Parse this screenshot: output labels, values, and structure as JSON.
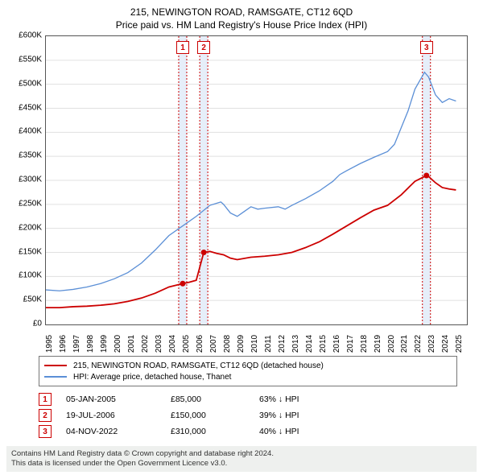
{
  "title": "215, NEWINGTON ROAD, RAMSGATE, CT12 6QD",
  "subtitle": "Price paid vs. HM Land Registry's House Price Index (HPI)",
  "chart": {
    "type": "line",
    "background_color": "#ffffff",
    "grid_color": "#e0e0e0",
    "border_color": "#555555",
    "xlim": [
      1995,
      2025.8
    ],
    "ylim": [
      0,
      600000
    ],
    "ytick_step": 50000,
    "yticks": [
      "£0",
      "£50K",
      "£100K",
      "£150K",
      "£200K",
      "£250K",
      "£300K",
      "£350K",
      "£400K",
      "£450K",
      "£500K",
      "£550K",
      "£600K"
    ],
    "xticks": [
      1995,
      1996,
      1997,
      1998,
      1999,
      2000,
      2001,
      2002,
      2003,
      2004,
      2005,
      2006,
      2007,
      2008,
      2009,
      2010,
      2011,
      2012,
      2013,
      2014,
      2015,
      2016,
      2017,
      2018,
      2019,
      2020,
      2021,
      2022,
      2023,
      2024,
      2025
    ],
    "label_fontsize": 10,
    "series": [
      {
        "name": "property",
        "label": "215, NEWINGTON ROAD, RAMSGATE, CT12 6QD (detached house)",
        "color": "#cc0000",
        "line_width": 1.8,
        "points": [
          [
            1995,
            35000
          ],
          [
            1996,
            35000
          ],
          [
            1997,
            37000
          ],
          [
            1998,
            38000
          ],
          [
            1999,
            40000
          ],
          [
            2000,
            43000
          ],
          [
            2001,
            48000
          ],
          [
            2002,
            55000
          ],
          [
            2003,
            65000
          ],
          [
            2004,
            78000
          ],
          [
            2005.01,
            85000
          ],
          [
            2005.5,
            88000
          ],
          [
            2006,
            92000
          ],
          [
            2006.55,
            150000
          ],
          [
            2007,
            152000
          ],
          [
            2007.5,
            148000
          ],
          [
            2008,
            145000
          ],
          [
            2008.5,
            138000
          ],
          [
            2009,
            135000
          ],
          [
            2010,
            140000
          ],
          [
            2011,
            142000
          ],
          [
            2012,
            145000
          ],
          [
            2013,
            150000
          ],
          [
            2014,
            160000
          ],
          [
            2015,
            172000
          ],
          [
            2016,
            188000
          ],
          [
            2017,
            205000
          ],
          [
            2018,
            222000
          ],
          [
            2019,
            238000
          ],
          [
            2020,
            248000
          ],
          [
            2021,
            270000
          ],
          [
            2022,
            298000
          ],
          [
            2022.84,
            310000
          ],
          [
            2023,
            308000
          ],
          [
            2023.5,
            295000
          ],
          [
            2024,
            285000
          ],
          [
            2024.5,
            282000
          ],
          [
            2025,
            280000
          ]
        ],
        "markers": [
          {
            "x": 2005.01,
            "y": 85000
          },
          {
            "x": 2006.55,
            "y": 150000
          },
          {
            "x": 2022.84,
            "y": 310000
          }
        ]
      },
      {
        "name": "hpi",
        "label": "HPI: Average price, detached house, Thanet",
        "color": "#5b8fd6",
        "line_width": 1.3,
        "points": [
          [
            1995,
            72000
          ],
          [
            1996,
            70000
          ],
          [
            1997,
            73000
          ],
          [
            1998,
            78000
          ],
          [
            1999,
            85000
          ],
          [
            2000,
            95000
          ],
          [
            2001,
            108000
          ],
          [
            2002,
            128000
          ],
          [
            2003,
            155000
          ],
          [
            2004,
            185000
          ],
          [
            2005,
            205000
          ],
          [
            2006,
            225000
          ],
          [
            2007,
            248000
          ],
          [
            2007.8,
            255000
          ],
          [
            2008,
            250000
          ],
          [
            2008.5,
            232000
          ],
          [
            2009,
            225000
          ],
          [
            2009.5,
            235000
          ],
          [
            2010,
            245000
          ],
          [
            2010.5,
            240000
          ],
          [
            2011,
            242000
          ],
          [
            2012,
            245000
          ],
          [
            2012.5,
            240000
          ],
          [
            2013,
            248000
          ],
          [
            2014,
            262000
          ],
          [
            2015,
            278000
          ],
          [
            2016,
            298000
          ],
          [
            2016.5,
            312000
          ],
          [
            2017,
            320000
          ],
          [
            2018,
            335000
          ],
          [
            2019,
            348000
          ],
          [
            2020,
            360000
          ],
          [
            2020.5,
            375000
          ],
          [
            2021,
            410000
          ],
          [
            2021.5,
            445000
          ],
          [
            2022,
            490000
          ],
          [
            2022.7,
            525000
          ],
          [
            2023,
            515000
          ],
          [
            2023.5,
            478000
          ],
          [
            2024,
            462000
          ],
          [
            2024.5,
            470000
          ],
          [
            2025,
            465000
          ]
        ]
      }
    ],
    "sale_markers": [
      {
        "num": "1",
        "x": 2005.01
      },
      {
        "num": "2",
        "x": 2006.55
      },
      {
        "num": "3",
        "x": 2022.84
      }
    ]
  },
  "legend": {
    "items": [
      {
        "color": "#cc0000",
        "label": "215, NEWINGTON ROAD, RAMSGATE, CT12 6QD (detached house)"
      },
      {
        "color": "#5b8fd6",
        "label": "HPI: Average price, detached house, Thanet"
      }
    ]
  },
  "sales": [
    {
      "num": "1",
      "date": "05-JAN-2005",
      "price": "£85,000",
      "diff": "63% ↓ HPI"
    },
    {
      "num": "2",
      "date": "19-JUL-2006",
      "price": "£150,000",
      "diff": "39% ↓ HPI"
    },
    {
      "num": "3",
      "date": "04-NOV-2022",
      "price": "£310,000",
      "diff": "40% ↓ HPI"
    }
  ],
  "footer": {
    "line1": "Contains HM Land Registry data © Crown copyright and database right 2024.",
    "line2": "This data is licensed under the Open Government Licence v3.0."
  }
}
